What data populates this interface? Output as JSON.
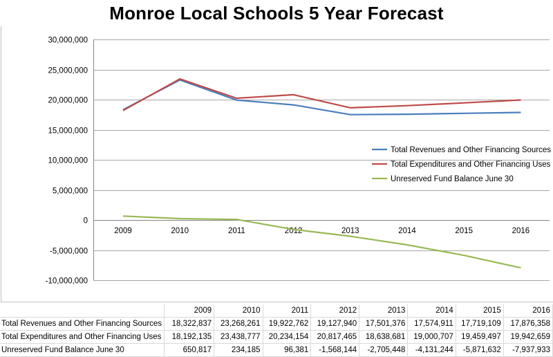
{
  "chart_data": {
    "type": "line",
    "title": "Monroe Local Schools 5 Year Forecast",
    "categories": [
      "2009",
      "2010",
      "2011",
      "2012",
      "2013",
      "2014",
      "2015",
      "2016"
    ],
    "ylim": [
      -10000000,
      30000000
    ],
    "yticks": [
      "30,000,000",
      "25,000,000",
      "20,000,000",
      "15,000,000",
      "10,000,000",
      "5,000,000",
      "0",
      "-5,000,000",
      "-10,000,000"
    ],
    "ytick_values": [
      30000000,
      25000000,
      20000000,
      15000000,
      10000000,
      5000000,
      0,
      -5000000,
      -10000000
    ],
    "grid": true,
    "legend_position": "right",
    "series": [
      {
        "name": "Total Revenues and Other Financing Sources",
        "color": "#4a7ebb",
        "values": [
          18322837,
          23268261,
          19922762,
          19127940,
          17501376,
          17574911,
          17719109,
          17876358
        ]
      },
      {
        "name": "Total Expenditures and Other Financing Uses",
        "color": "#be4b48",
        "values": [
          18192135,
          23438777,
          20234154,
          20817465,
          18638681,
          19000707,
          19459497,
          19942659
        ]
      },
      {
        "name": "Unreserved Fund Balance June 30",
        "color": "#98b954",
        "values": [
          650817,
          234185,
          96381,
          -1568144,
          -2705448,
          -4131244,
          -5871632,
          -7937933
        ]
      }
    ]
  },
  "table": {
    "header": [
      "2009",
      "2010",
      "2011",
      "2012",
      "2013",
      "2014",
      "2015",
      "2016"
    ],
    "rows": [
      {
        "label": "Total Revenues and Other Financing Sources",
        "cells": [
          "18,322,837",
          "23,268,261",
          "19,922,762",
          "19,127,940",
          "17,501,376",
          "17,574,911",
          "17,719,109",
          "17,876,358"
        ]
      },
      {
        "label": "Total Expenditures and Other Financing Uses",
        "cells": [
          "18,192,135",
          "23,438,777",
          "20,234,154",
          "20,817,465",
          "18,638,681",
          "19,000,707",
          "19,459,497",
          "19,942,659"
        ]
      },
      {
        "label": "Unreserved Fund Balance June 30",
        "cells": [
          "650,817",
          "234,185",
          "96,381",
          "-1,568,144",
          "-2,705,448",
          "-4,131,244",
          "-5,871,632",
          "-7,937,933"
        ]
      }
    ]
  }
}
